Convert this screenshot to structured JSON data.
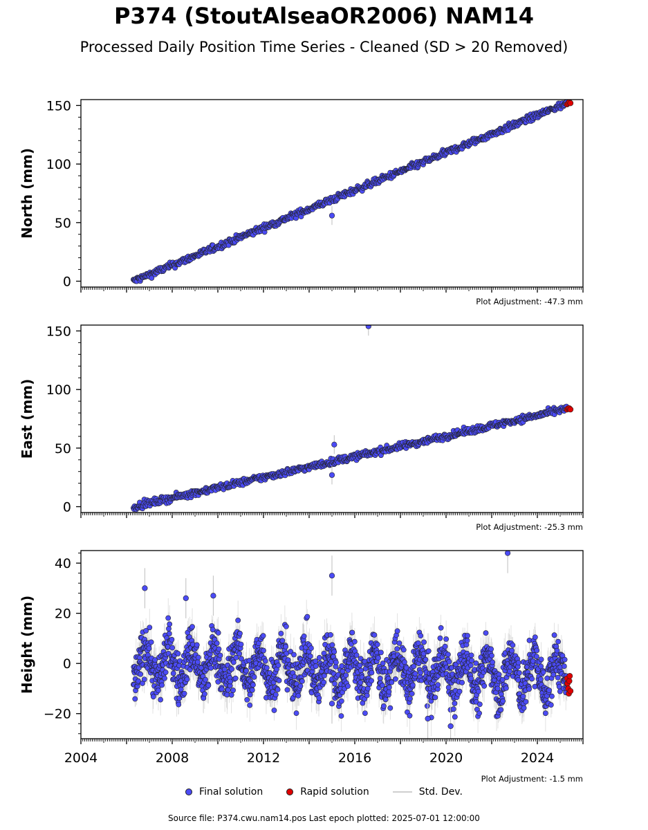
{
  "title": "P374 (StoutAlseaOR2006) NAM14",
  "subtitle": "Processed Daily Position Time Series - Cleaned (SD > 20 Removed)",
  "legend": {
    "final": "Final solution",
    "rapid": "Rapid solution",
    "std": "Std. Dev."
  },
  "footer": "Source file: P374.cwu.nam14.pos  Last epoch plotted: 2025-07-01 12:00:00",
  "colors": {
    "final": "#4b4bf5",
    "rapid": "#e00000",
    "std": "#bdbdbd",
    "edge": "#222222"
  },
  "chart_data": [
    {
      "type": "scatter",
      "ylabel": "North (mm)",
      "adjustment": "Plot Adjustment: -47.3 mm",
      "xlim": [
        2004,
        2026
      ],
      "ylim": [
        -5,
        155
      ],
      "yticks": [
        0,
        50,
        100,
        150
      ],
      "xticks": [],
      "trend": {
        "x0": 2006.3,
        "y0": 0,
        "slope": 8.0
      },
      "points": [
        [
          2006.3,
          0
        ],
        [
          2007,
          5
        ],
        [
          2008,
          12
        ],
        [
          2008.5,
          16
        ],
        [
          2009,
          22
        ],
        [
          2009.7,
          28
        ],
        [
          2010,
          29
        ],
        [
          2010.7,
          35
        ],
        [
          2011,
          39
        ],
        [
          2012,
          47
        ],
        [
          2013,
          54
        ],
        [
          2014,
          60
        ],
        [
          2015,
          67
        ],
        [
          2015,
          56
        ],
        [
          2015.5,
          72
        ],
        [
          2016,
          78
        ],
        [
          2016.5,
          82
        ],
        [
          2017,
          88
        ],
        [
          2018,
          96
        ],
        [
          2019,
          104
        ],
        [
          2020,
          112
        ],
        [
          2021,
          120
        ],
        [
          2022,
          128
        ],
        [
          2023,
          135
        ],
        [
          2024,
          143
        ],
        [
          2025,
          150
        ]
      ],
      "outliers": [
        [
          2015,
          56
        ]
      ],
      "rapid": [
        [
          2025.3,
          151
        ],
        [
          2025.35,
          152
        ],
        [
          2025.4,
          153
        ],
        [
          2025.45,
          152
        ]
      ]
    },
    {
      "type": "scatter",
      "ylabel": "East (mm)",
      "adjustment": "Plot Adjustment: -25.3 mm",
      "xlim": [
        2004,
        2026
      ],
      "ylim": [
        -5,
        155
      ],
      "yticks": [
        0,
        50,
        100,
        150
      ],
      "xticks": [],
      "trend": {
        "x0": 2006.3,
        "y0": 0,
        "slope": 4.4
      },
      "points": [
        [
          2006.3,
          0
        ],
        [
          2007,
          3
        ],
        [
          2008,
          6
        ],
        [
          2009,
          10
        ],
        [
          2010,
          14
        ],
        [
          2011,
          18
        ],
        [
          2012,
          22
        ],
        [
          2013,
          26
        ],
        [
          2014,
          31
        ],
        [
          2015,
          35
        ],
        [
          2016,
          40
        ],
        [
          2017,
          44
        ],
        [
          2018,
          48
        ],
        [
          2019,
          53
        ],
        [
          2020,
          57
        ],
        [
          2021,
          62
        ],
        [
          2022,
          66
        ],
        [
          2023,
          71
        ],
        [
          2024,
          76
        ],
        [
          2025,
          81
        ]
      ],
      "outliers": [
        [
          2015.1,
          53
        ],
        [
          2016.6,
          154
        ],
        [
          2015,
          27
        ]
      ],
      "rapid": [
        [
          2025.3,
          83
        ],
        [
          2025.35,
          84
        ],
        [
          2025.4,
          84
        ],
        [
          2025.45,
          83
        ]
      ]
    },
    {
      "type": "scatter",
      "ylabel": "Height (mm)",
      "adjustment": "Plot Adjustment: -1.5 mm",
      "xlim": [
        2004,
        2026
      ],
      "ylim": [
        -30,
        45
      ],
      "yticks": [
        -20,
        0,
        20,
        40
      ],
      "xticks": [
        2004,
        2008,
        2012,
        2016,
        2020,
        2024
      ],
      "seasonal": {
        "x0": 2006.3,
        "amplitude": 7,
        "noise": 5,
        "drift": -0.25
      },
      "outliers": [
        [
          2006.8,
          30
        ],
        [
          2008.6,
          26
        ],
        [
          2009.8,
          27
        ],
        [
          2015,
          35
        ],
        [
          2015,
          -16
        ],
        [
          2020.2,
          -25
        ],
        [
          2022.7,
          44
        ],
        [
          2019.2,
          -22
        ]
      ],
      "rapid": [
        [
          2025.3,
          -6
        ],
        [
          2025.32,
          -8
        ],
        [
          2025.35,
          -10
        ],
        [
          2025.38,
          -12
        ],
        [
          2025.4,
          -7
        ],
        [
          2025.42,
          -5
        ],
        [
          2025.45,
          -11
        ]
      ]
    }
  ]
}
